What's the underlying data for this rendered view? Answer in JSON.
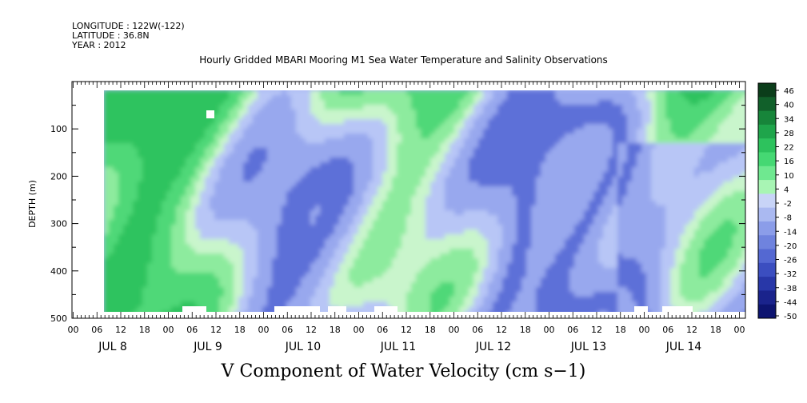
{
  "header": {
    "longitude": "LONGITUDE : 122W(-122)",
    "latitude": "LATITUDE : 36.8N",
    "year": "YEAR : 2012"
  },
  "chart_data": {
    "type": "heatmap",
    "title": "Hourly Gridded MBARI Mooring M1 Sea Water Temperature and Salinity Observations",
    "variable_label": "V Component of Water Velocity (cm s−1)",
    "ylabel": "DEPTH (m)",
    "ylim": [
      500,
      0
    ],
    "y_ticks": [
      "100",
      "200",
      "300",
      "400",
      "500"
    ],
    "x_hour_labels": [
      "00",
      "06",
      "12",
      "18",
      "00",
      "06",
      "12",
      "18",
      "00",
      "06",
      "12",
      "18",
      "00",
      "06",
      "12",
      "18",
      "00",
      "06",
      "12",
      "18",
      "00",
      "06",
      "12",
      "18",
      "00",
      "06",
      "12",
      "18",
      "00"
    ],
    "x_day_labels": [
      "JUL  8",
      "JUL  9",
      "JUL 10",
      "JUL 11",
      "JUL 12",
      "JUL 13",
      "JUL 14"
    ],
    "colorbar": {
      "labels": [
        "46",
        "40",
        "34",
        "28",
        "22",
        "16",
        "10",
        "4",
        "-2",
        "-8",
        "-14",
        "-20",
        "-26",
        "-32",
        "-38",
        "-44",
        "-50"
      ],
      "colors": [
        "#0b3d1a",
        "#11602a",
        "#17853a",
        "#1fa54b",
        "#2dc25d",
        "#45d873",
        "#6fe890",
        "#a8f5b4",
        "#c8d4f7",
        "#aab9f1",
        "#8b9de9",
        "#6f83de",
        "#5468d2",
        "#3b4ec0",
        "#2837a8",
        "#1a238c",
        "#0d1470"
      ]
    },
    "field_summary": "Alternating green (positive) and blue (negative) velocity bands from Jul 8 00 to Jul 14 ~24, depth 20-480 m"
  }
}
